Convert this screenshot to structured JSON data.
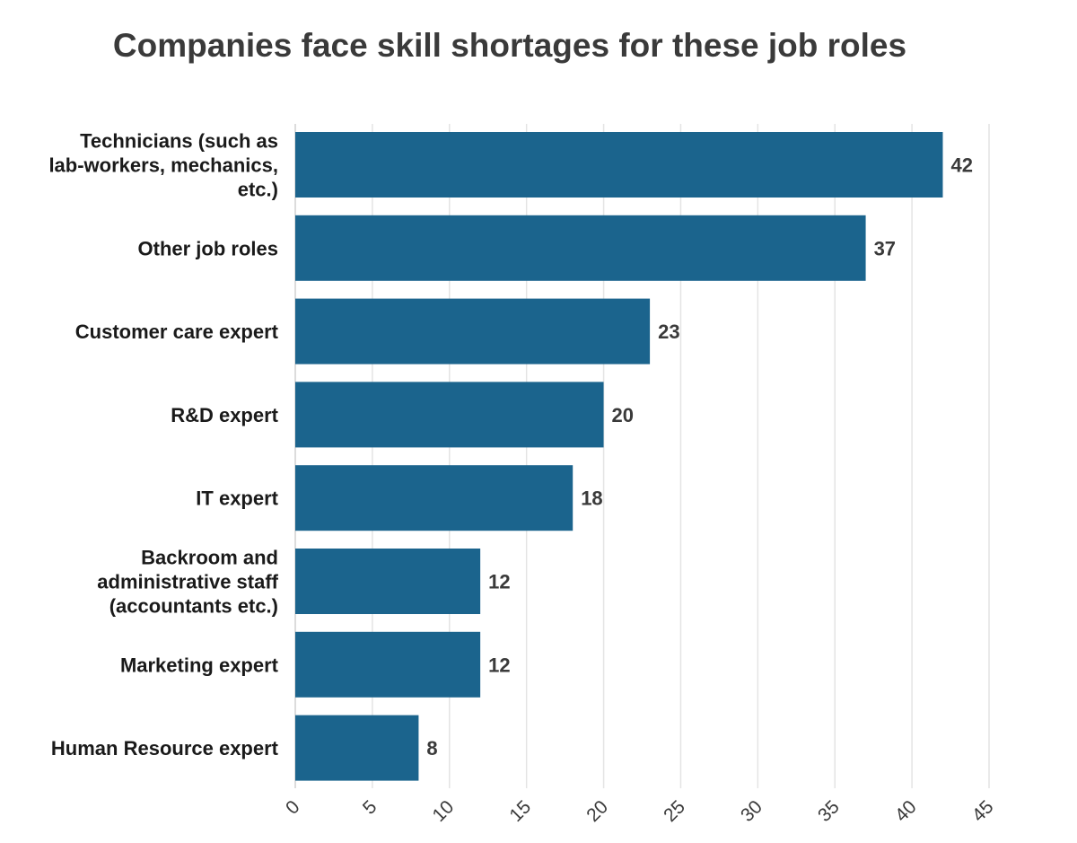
{
  "chart_data": {
    "type": "bar",
    "orientation": "horizontal",
    "title": "Companies face skill shortages for these job roles",
    "categories": [
      "Technicians (such as lab-workers, mechanics, etc.)",
      "Other job roles",
      "Customer care expert",
      "R&D expert",
      "IT expert",
      "Backroom and administrative staff (accountants etc.)",
      "Marketing expert",
      "Human Resource expert"
    ],
    "category_lines": [
      [
        "Technicians (such as",
        "lab-workers, mechanics,",
        "etc.)"
      ],
      [
        "Other job roles"
      ],
      [
        "Customer care expert"
      ],
      [
        "R&D expert"
      ],
      [
        "IT expert"
      ],
      [
        "Backroom and",
        "administrative staff",
        "(accountants etc.)"
      ],
      [
        "Marketing expert"
      ],
      [
        "Human Resource expert"
      ]
    ],
    "values": [
      42,
      37,
      23,
      20,
      18,
      12,
      12,
      8
    ],
    "value_labels": [
      "42",
      "37",
      "23",
      "20",
      "18",
      "12",
      "12",
      "8"
    ],
    "xlim": [
      0,
      45
    ],
    "xticks": [
      0,
      5,
      10,
      15,
      20,
      25,
      30,
      35,
      40,
      45
    ],
    "xtick_labels": [
      "0",
      "5",
      "10",
      "15",
      "20",
      "25",
      "30",
      "35",
      "40",
      "45"
    ],
    "xlabel": "",
    "ylabel": "",
    "grid": true,
    "legend": "none",
    "colors": {
      "bar": "#1b648d",
      "grid": "#e4e4e4",
      "title": "#3a3a3a",
      "text": "#1a1a1a"
    }
  }
}
